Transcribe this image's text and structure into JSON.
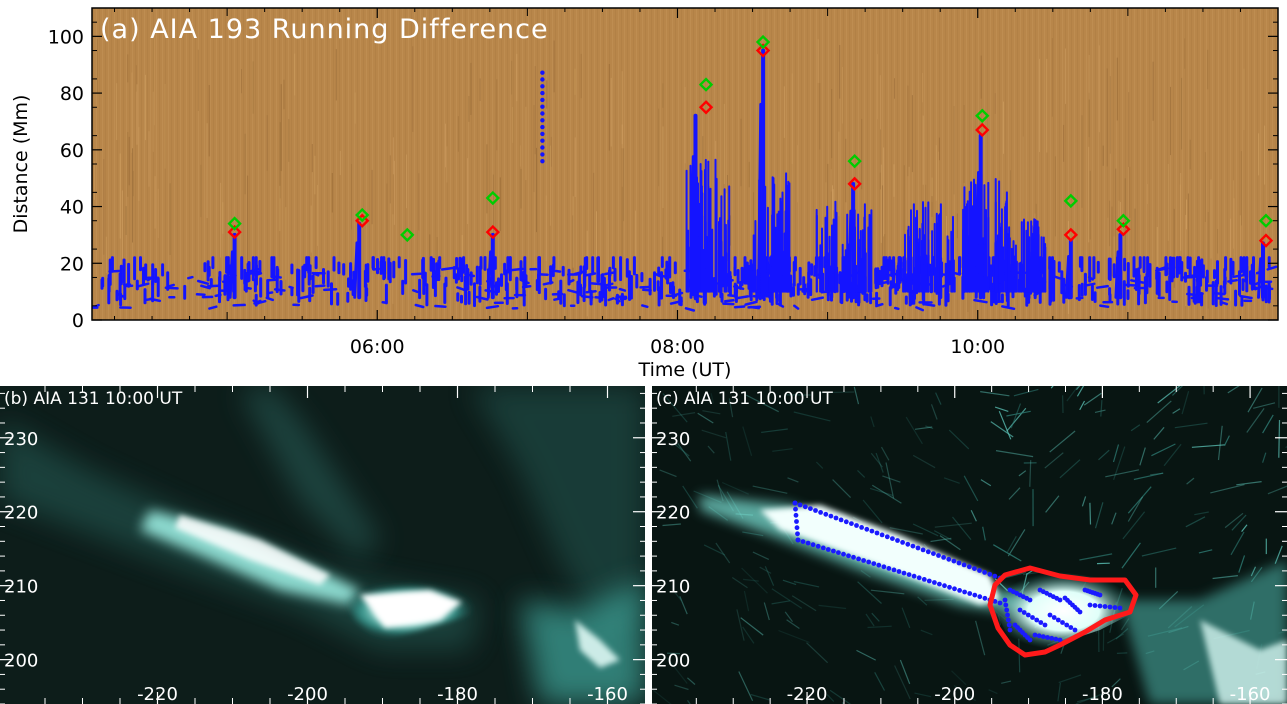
{
  "chart_data": [
    {
      "panel": "a",
      "type": "scatter",
      "title": "(a) AIA 193 Running Difference",
      "xlabel": "Time (UT)",
      "ylabel": "Distance (Mm)",
      "xticklabels": [
        "06:00",
        "08:00",
        "10:00"
      ],
      "xtick_hours": [
        6,
        8,
        10
      ],
      "xlim_hours": [
        4.1,
        12.0
      ],
      "ylim": [
        0,
        110
      ],
      "yticks": [
        0,
        20,
        40,
        60,
        80,
        100
      ],
      "background": "#b8864a",
      "series": [
        {
          "color": "#ff0000",
          "marker": "diamond",
          "points": [
            [
              5.05,
              31
            ],
            [
              5.9,
              35
            ],
            [
              6.77,
              31
            ],
            [
              8.19,
              75
            ],
            [
              8.57,
              95
            ],
            [
              9.18,
              48
            ],
            [
              10.03,
              67
            ],
            [
              10.62,
              30
            ],
            [
              10.97,
              32
            ],
            [
              11.92,
              28
            ]
          ]
        },
        {
          "color": "#00cc00",
          "marker": "diamond",
          "points": [
            [
              5.05,
              34
            ],
            [
              5.9,
              37
            ],
            [
              6.2,
              30
            ],
            [
              6.77,
              43
            ],
            [
              8.19,
              83
            ],
            [
              8.57,
              98
            ],
            [
              9.18,
              56
            ],
            [
              10.03,
              72
            ],
            [
              10.62,
              42
            ],
            [
              10.97,
              35
            ],
            [
              11.92,
              35
            ]
          ]
        }
      ],
      "jet_spikes": [
        {
          "t": 5.05,
          "h": 30
        },
        {
          "t": 5.88,
          "h": 34
        },
        {
          "t": 6.77,
          "h": 30
        },
        {
          "t": 8.12,
          "h": 72
        },
        {
          "t": 8.57,
          "h": 95
        },
        {
          "t": 9.17,
          "h": 48
        },
        {
          "t": 10.02,
          "h": 65
        },
        {
          "t": 10.62,
          "h": 28
        },
        {
          "t": 10.95,
          "h": 30
        },
        {
          "t": 11.9,
          "h": 27
        }
      ],
      "isolated_dots": {
        "t": 7.1,
        "y_range": [
          56,
          88
        ]
      }
    },
    {
      "panel": "b",
      "type": "image",
      "title": "(b) AIA 131 10:00 UT",
      "xticklabels": [
        "-220",
        "-200",
        "-180",
        "-160"
      ],
      "xticks": [
        -220,
        -200,
        -180,
        -160
      ],
      "xlim": [
        -241,
        -155
      ],
      "yticklabels": [
        "230",
        "220",
        "210",
        "200"
      ],
      "yticks": [
        230,
        220,
        210,
        200
      ],
      "ylim": [
        194,
        237
      ]
    },
    {
      "panel": "c",
      "type": "image",
      "title": "(c) AIA 131 10:00 UT",
      "xticklabels": [
        "-220",
        "-200",
        "-180",
        "-160"
      ],
      "xticks": [
        -220,
        -200,
        -180,
        -160
      ],
      "xlim": [
        -241,
        -155
      ],
      "yticklabels": [
        "230",
        "220",
        "210",
        "200"
      ],
      "yticks": [
        230,
        220,
        210,
        200
      ],
      "ylim": [
        194,
        237
      ],
      "contour_color": "#ff1a1a",
      "points_color": "#1a1aff"
    }
  ]
}
